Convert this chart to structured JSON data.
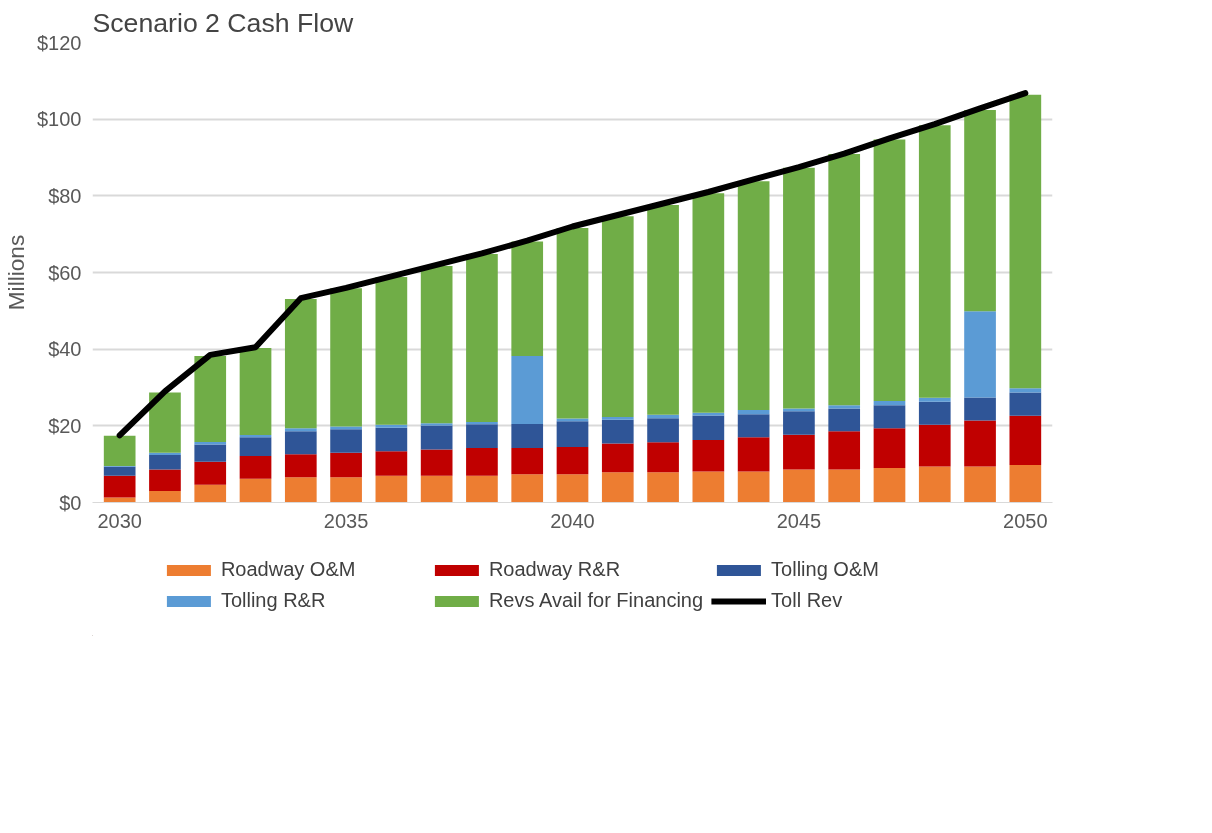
{
  "chart_data": {
    "type": "bar",
    "stacked": true,
    "title": "Scenario 2 Cash Flow",
    "ylabel": "Millions",
    "x": [
      2030,
      2031,
      2032,
      2033,
      2034,
      2035,
      2036,
      2037,
      2038,
      2039,
      2040,
      2041,
      2042,
      2043,
      2044,
      2045,
      2046,
      2047,
      2048,
      2049,
      2050
    ],
    "xlim": [
      2029.4,
      2050.6
    ],
    "xticks": [
      2030,
      2035,
      2040,
      2045,
      2050
    ],
    "ylim": [
      0,
      120
    ],
    "yticks": [
      {
        "value": 0,
        "label": "$0"
      },
      {
        "value": 20,
        "label": "$20"
      },
      {
        "value": 40,
        "label": "$40"
      },
      {
        "value": 60,
        "label": "$60"
      },
      {
        "value": 80,
        "label": "$80"
      },
      {
        "value": 100,
        "label": "$100"
      },
      {
        "value": 120,
        "label": "$120"
      }
    ],
    "grid": "y",
    "legend": "bottom",
    "series": [
      {
        "name": "Roadway O&M",
        "color": "#ed7d31",
        "values": [
          1.3,
          3.0,
          4.6,
          6.2,
          6.6,
          6.6,
          7.0,
          7.0,
          7.0,
          7.4,
          7.4,
          7.9,
          7.9,
          8.1,
          8.1,
          8.6,
          8.6,
          9.0,
          9.4,
          9.4,
          9.8
        ]
      },
      {
        "name": "Roadway R&R",
        "color": "#c00000",
        "values": [
          5.7,
          5.6,
          6.0,
          5.9,
          6.0,
          6.4,
          6.4,
          6.8,
          7.2,
          6.8,
          7.1,
          7.5,
          7.8,
          8.2,
          8.9,
          9.1,
          10.0,
          10.4,
          10.9,
          12.0,
          12.8
        ]
      },
      {
        "name": "Tolling O&M",
        "color": "#2f5597",
        "values": [
          2.3,
          3.8,
          4.5,
          4.9,
          6.0,
          6.1,
          6.1,
          6.3,
          6.2,
          6.3,
          6.7,
          6.2,
          6.3,
          6.4,
          6.0,
          6.1,
          5.9,
          6.0,
          6.0,
          6.0,
          6.1
        ]
      },
      {
        "name": "Tolling R&R",
        "color": "#5b9bd5",
        "values": [
          0.2,
          0.6,
          0.7,
          0.6,
          0.8,
          0.7,
          0.8,
          0.6,
          0.6,
          17.7,
          0.7,
          0.7,
          0.9,
          0.7,
          1.1,
          0.7,
          0.9,
          1.1,
          1.0,
          22.5,
          1.1
        ]
      },
      {
        "name": "Revs Avail for Financing",
        "color": "#70ad47",
        "values": [
          7.9,
          15.7,
          22.4,
          22.7,
          33.7,
          36.1,
          38.5,
          41.0,
          43.8,
          29.9,
          49.7,
          52.4,
          54.7,
          57.3,
          59.7,
          62.8,
          65.5,
          68.2,
          71.1,
          52.5,
          76.6
        ]
      },
      {
        "name": "Toll Rev",
        "type": "line",
        "color": "#000000",
        "marker": "none",
        "line_style": "solid",
        "values": [
          17.5,
          29.0,
          38.5,
          40.5,
          53.3,
          56.0,
          59.0,
          62.0,
          65.0,
          68.3,
          72.0,
          75.0,
          78.0,
          81.0,
          84.3,
          87.5,
          91.0,
          95.0,
          98.7,
          102.8,
          106.8
        ]
      }
    ]
  }
}
